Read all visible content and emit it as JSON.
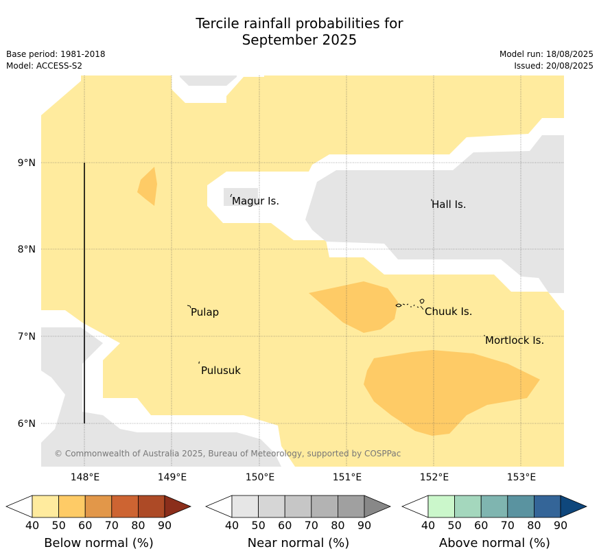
{
  "title_line1": "Tercile rainfall probabilities for",
  "title_line2": "September 2025",
  "base_period": "Base period: 1981-2018",
  "model": "Model: ACCESS-S2",
  "model_run": "Model run: 18/08/2025",
  "issued": "Issued: 20/08/2025",
  "map": {
    "lon_labels": [
      "148°E",
      "149°E",
      "150°E",
      "151°E",
      "152°E",
      "153°E"
    ],
    "lat_labels": [
      "9°N",
      "8°N",
      "7°N",
      "6°N"
    ],
    "places": [
      "Magur Is.",
      "Hall Is.",
      "Pulap",
      "Chuuk Is.",
      "Mortlock Is.",
      "Pulusuk"
    ],
    "copyright": "© Commonwealth of Australia 2025, Bureau of Meteorology, supported by COSPPac",
    "colors": {
      "below_50": "#ffeb9e",
      "below_60": "#fecb66",
      "near_50": "#e5e5e5",
      "white": "#ffffff"
    }
  },
  "colorbars": [
    {
      "label": "Below normal (%)",
      "ticks": [
        "40",
        "50",
        "60",
        "70",
        "80",
        "90"
      ],
      "colors": [
        "#ffeb9e",
        "#fecb66",
        "#e29749",
        "#cd6432",
        "#ad4a26",
        "#8b2e1b"
      ]
    },
    {
      "label": "Near normal (%)",
      "ticks": [
        "40",
        "50",
        "60",
        "70",
        "80",
        "90"
      ],
      "colors": [
        "#e6e6e6",
        "#d6d6d6",
        "#c6c6c6",
        "#b3b3b3",
        "#a0a0a0",
        "#888888"
      ]
    },
    {
      "label": "Above normal (%)",
      "ticks": [
        "40",
        "50",
        "60",
        "70",
        "80",
        "90"
      ],
      "colors": [
        "#cbf7cb",
        "#a4d7bd",
        "#7fb5b0",
        "#5a93a0",
        "#346598",
        "#0f477c"
      ]
    }
  ]
}
